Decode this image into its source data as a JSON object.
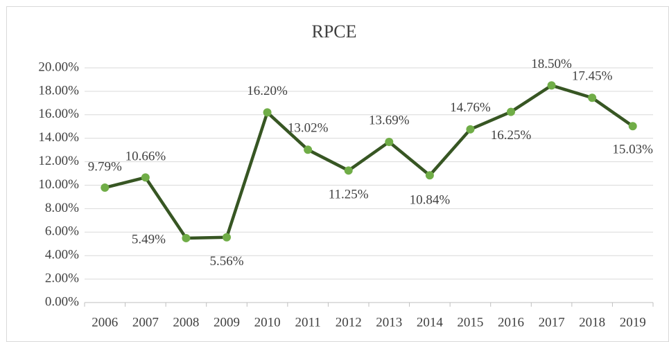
{
  "chart_data": {
    "type": "line",
    "title": "RPCE",
    "categories": [
      "2006",
      "2007",
      "2008",
      "2009",
      "2010",
      "2011",
      "2012",
      "2013",
      "2014",
      "2015",
      "2016",
      "2017",
      "2018",
      "2019"
    ],
    "series": [
      {
        "name": "RPCE",
        "color": "#375623",
        "marker_color": "#70ad47",
        "values": [
          9.79,
          10.66,
          5.49,
          5.56,
          16.2,
          13.02,
          11.25,
          13.69,
          10.84,
          14.76,
          16.25,
          18.5,
          17.45,
          15.03
        ],
        "value_labels": [
          "9.79%",
          "10.66%",
          "5.49%",
          "5.56%",
          "16.20%",
          "13.02%",
          "11.25%",
          "13.69%",
          "10.84%",
          "14.76%",
          "16.25%",
          "18.50%",
          "17.45%",
          "15.03%"
        ]
      }
    ],
    "ylim": [
      0,
      20
    ],
    "yticks": [
      {
        "value": 0,
        "label": "0.00%"
      },
      {
        "value": 2,
        "label": "2.00%"
      },
      {
        "value": 4,
        "label": "4.00%"
      },
      {
        "value": 6,
        "label": "6.00%"
      },
      {
        "value": 8,
        "label": "8.00%"
      },
      {
        "value": 10,
        "label": "10.00%"
      },
      {
        "value": 12,
        "label": "12.00%"
      },
      {
        "value": 14,
        "label": "14.00%"
      },
      {
        "value": 16,
        "label": "16.00%"
      },
      {
        "value": 18,
        "label": "18.00%"
      },
      {
        "value": 20,
        "label": "20.00%"
      }
    ],
    "grid": true
  }
}
